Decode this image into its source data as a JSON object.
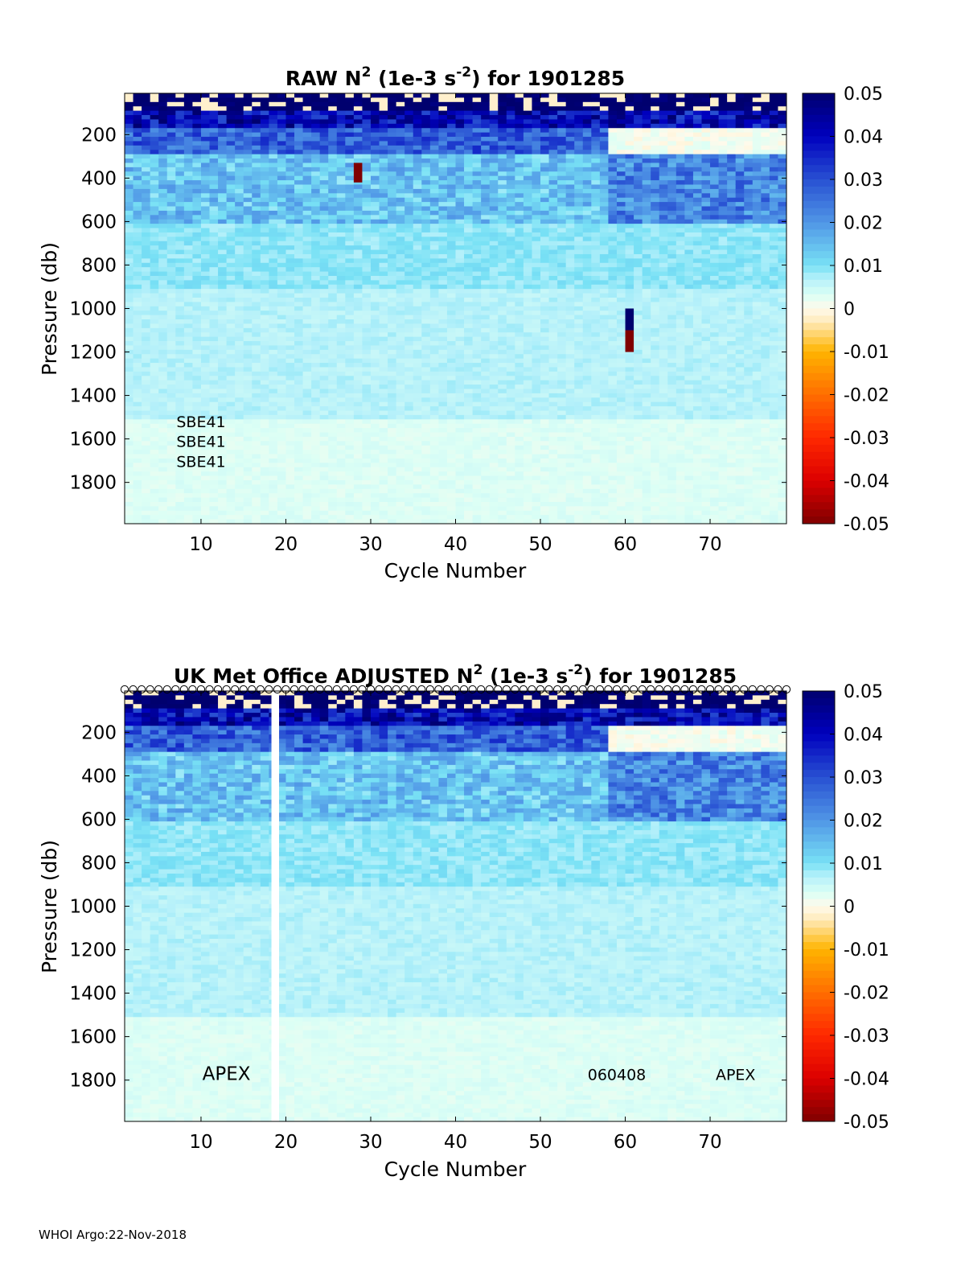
{
  "footer": "WHOI Argo:22-Nov-2018",
  "chart_data": [
    {
      "type": "heatmap",
      "title_parts": {
        "pre": "RAW N",
        "sup1": "2",
        "mid": " (1e-3 s",
        "sup2": "-2",
        "post": ") for 1901285"
      },
      "xlabel": "Cycle Number",
      "ylabel": "Pressure (db)",
      "xlim": [
        1,
        79
      ],
      "ylim": [
        1990,
        10
      ],
      "x_ticks": [
        10,
        20,
        30,
        40,
        50,
        60,
        70
      ],
      "y_ticks": [
        200,
        400,
        600,
        800,
        1000,
        1200,
        1400,
        1600,
        1800
      ],
      "colorbar": {
        "range": [
          -0.05,
          0.05
        ],
        "ticks": [
          "0.05",
          "0.04",
          "0.03",
          "0.02",
          "0.01",
          "0",
          "-0.01",
          "-0.02",
          "-0.03",
          "-0.04",
          "-0.05"
        ]
      },
      "annotations": [
        {
          "text": "SBE41",
          "x": 10,
          "y": 1545
        },
        {
          "text": "SBE41",
          "x": 10,
          "y": 1637
        },
        {
          "text": "SBE41",
          "x": 10,
          "y": 1730
        }
      ],
      "features": {
        "deep_n2_value": 0.007,
        "upper_n2_value": 0.04,
        "anomaly_columns": [
          {
            "cycle": 28.5,
            "p_from": 330,
            "p_to": 420,
            "value": -0.05
          },
          {
            "cycle": 60.5,
            "p_from": 1000,
            "p_to": 1100,
            "value": 0.05
          },
          {
            "cycle": 60.5,
            "p_from": 1100,
            "p_to": 1200,
            "value": -0.05
          }
        ]
      }
    },
    {
      "type": "heatmap",
      "title_parts": {
        "pre": "UK Met Office  ADJUSTED N",
        "sup1": "2",
        "mid": " (1e-3 s",
        "sup2": "-2",
        "post": ") for 1901285"
      },
      "xlabel": "Cycle Number",
      "ylabel": "Pressure (db)",
      "xlim": [
        1,
        79
      ],
      "ylim": [
        1990,
        10
      ],
      "x_ticks": [
        10,
        20,
        30,
        40,
        50,
        60,
        70
      ],
      "y_ticks": [
        200,
        400,
        600,
        800,
        1000,
        1200,
        1400,
        1600,
        1800
      ],
      "colorbar": {
        "range": [
          -0.05,
          0.05
        ],
        "ticks": [
          "0.05",
          "0.04",
          "0.03",
          "0.02",
          "0.01",
          "0",
          "-0.01",
          "-0.02",
          "-0.03",
          "-0.04",
          "-0.05"
        ]
      },
      "annotations": [
        {
          "text": "APEX",
          "x": 13,
          "y": 1800
        },
        {
          "text": "060408",
          "x": 59,
          "y": 1800
        },
        {
          "text": "APEX",
          "x": 73,
          "y": 1800
        }
      ],
      "missing_cycles": [
        18
      ],
      "features": {
        "deep_n2_value": 0.007,
        "upper_n2_value": 0.04
      }
    }
  ]
}
